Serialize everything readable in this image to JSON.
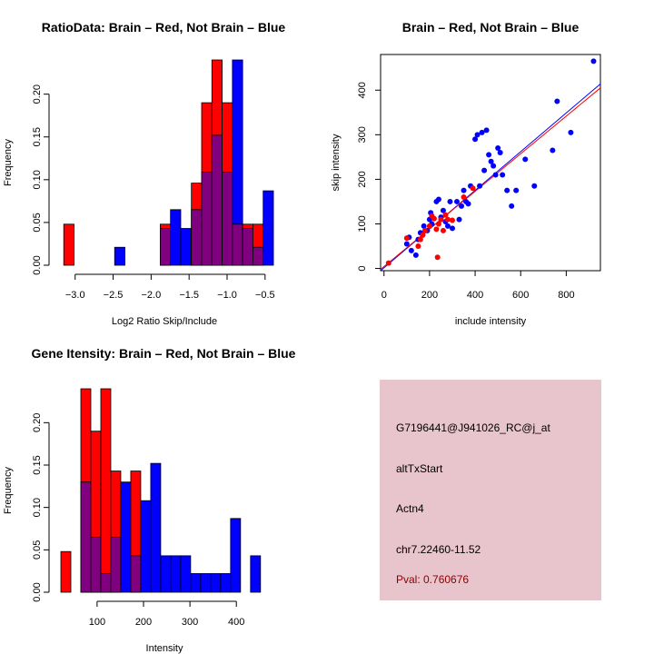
{
  "chart_data": [
    {
      "type": "bar",
      "title": "RatioData: Brain – Red, Not Brain – Blue",
      "xlabel": "Log2 Ratio Skip/Include",
      "ylabel": "Frequency",
      "xlim": [
        -3.2,
        -0.45
      ],
      "ylim": [
        0,
        0.24
      ],
      "xticks": [
        -3.0,
        -2.5,
        -2.0,
        -1.5,
        -1.0,
        -0.5
      ],
      "xtick_labels": [
        "−3.0",
        "−2.5",
        "−2.0",
        "−1.5",
        "−1.0",
        "−0.5"
      ],
      "yticks": [
        0.0,
        0.05,
        0.1,
        0.15,
        0.2
      ],
      "ytick_labels": [
        "0.00",
        "0.05",
        "0.10",
        "0.15",
        "0.20"
      ],
      "bin_width": 0.135,
      "series": [
        {
          "name": "Brain",
          "color": "#ff0000",
          "bins": [
            {
              "x0": -3.15,
              "value": 0.048
            },
            {
              "x0": -1.88,
              "value": 0.048
            },
            {
              "x0": -1.47,
              "value": 0.096
            },
            {
              "x0": -1.335,
              "value": 0.19
            },
            {
              "x0": -1.2,
              "value": 0.24
            },
            {
              "x0": -1.065,
              "value": 0.19
            },
            {
              "x0": -0.93,
              "value": 0.048
            },
            {
              "x0": -0.795,
              "value": 0.048
            },
            {
              "x0": -0.66,
              "value": 0.048
            }
          ]
        },
        {
          "name": "Not Brain",
          "color": "#0000ff",
          "bins": [
            {
              "x0": -2.48,
              "value": 0.021
            },
            {
              "x0": -1.88,
              "value": 0.043
            },
            {
              "x0": -1.745,
              "value": 0.065
            },
            {
              "x0": -1.61,
              "value": 0.043
            },
            {
              "x0": -1.47,
              "value": 0.065
            },
            {
              "x0": -1.335,
              "value": 0.109
            },
            {
              "x0": -1.2,
              "value": 0.152
            },
            {
              "x0": -1.065,
              "value": 0.109
            },
            {
              "x0": -0.93,
              "value": 0.24
            },
            {
              "x0": -0.795,
              "value": 0.043
            },
            {
              "x0": -0.66,
              "value": 0.021
            },
            {
              "x0": -0.525,
              "value": 0.087
            }
          ]
        }
      ]
    },
    {
      "type": "scatter",
      "title": "Brain – Red, Not Brain – Blue",
      "xlabel": "include intensity",
      "ylabel": "skip intensity",
      "xlim": [
        -15,
        950
      ],
      "ylim": [
        -5,
        480
      ],
      "xticks": [
        0,
        200,
        400,
        600,
        800
      ],
      "xtick_labels": [
        "0",
        "200",
        "400",
        "600",
        "800"
      ],
      "yticks": [
        0,
        100,
        200,
        300,
        400
      ],
      "ytick_labels": [
        "0",
        "100",
        "200",
        "300",
        "400"
      ],
      "fit_lines": [
        {
          "name": "Not Brain",
          "color": "#0000ff",
          "x": [
            -15,
            950
          ],
          "y": [
            -5,
            414
          ]
        },
        {
          "name": "Brain",
          "color": "#ff0000",
          "x": [
            -15,
            950
          ],
          "y": [
            -2,
            405
          ]
        }
      ],
      "series": [
        {
          "name": "Brain",
          "color": "#ff0000",
          "x": [
            20,
            100,
            150,
            160,
            170,
            180,
            200,
            210,
            220,
            230,
            240,
            250,
            260,
            270,
            280,
            300,
            350,
            390,
            235
          ],
          "y": [
            12,
            68,
            50,
            65,
            75,
            85,
            95,
            118,
            112,
            88,
            100,
            110,
            85,
            120,
            110,
            108,
            160,
            180,
            25
          ]
        },
        {
          "name": "Not Brain",
          "color": "#0000ff",
          "x": [
            100,
            110,
            120,
            140,
            150,
            160,
            170,
            175,
            190,
            200,
            205,
            210,
            230,
            240,
            250,
            260,
            270,
            280,
            290,
            300,
            320,
            330,
            340,
            350,
            360,
            370,
            380,
            400,
            410,
            420,
            430,
            440,
            450,
            460,
            470,
            480,
            490,
            500,
            510,
            520,
            540,
            560,
            580,
            620,
            660,
            740,
            760,
            820,
            920
          ],
          "y": [
            55,
            70,
            40,
            30,
            65,
            80,
            75,
            95,
            85,
            110,
            125,
            100,
            150,
            155,
            115,
            130,
            105,
            95,
            150,
            90,
            150,
            110,
            140,
            175,
            150,
            145,
            185,
            290,
            300,
            185,
            305,
            220,
            310,
            255,
            240,
            230,
            210,
            270,
            260,
            210,
            175,
            140,
            175,
            245,
            185,
            265,
            375,
            305,
            465
          ]
        }
      ]
    },
    {
      "type": "bar",
      "title": "Gene Itensity: Brain – Red, Not Brain – Blue",
      "xlabel": "Intensity",
      "ylabel": "Frequency",
      "xlim": [
        20,
        470
      ],
      "ylim": [
        0,
        0.24
      ],
      "xticks": [
        100,
        200,
        300,
        400
      ],
      "xtick_labels": [
        "100",
        "200",
        "300",
        "400"
      ],
      "yticks": [
        0.0,
        0.05,
        0.1,
        0.15,
        0.2
      ],
      "ytick_labels": [
        "0.00",
        "0.05",
        "0.10",
        "0.15",
        "0.20"
      ],
      "bin_width": 21.5,
      "series": [
        {
          "name": "Brain",
          "color": "#ff0000",
          "bins": [
            {
              "x0": 22,
              "value": 0.048
            },
            {
              "x0": 65,
              "value": 0.24
            },
            {
              "x0": 86.5,
              "value": 0.19
            },
            {
              "x0": 108,
              "value": 0.24
            },
            {
              "x0": 129.5,
              "value": 0.143
            },
            {
              "x0": 172.5,
              "value": 0.143
            }
          ]
        },
        {
          "name": "Not Brain",
          "color": "#0000ff",
          "bins": [
            {
              "x0": 65,
              "value": 0.13
            },
            {
              "x0": 86.5,
              "value": 0.065
            },
            {
              "x0": 108,
              "value": 0.022
            },
            {
              "x0": 129.5,
              "value": 0.065
            },
            {
              "x0": 151,
              "value": 0.13
            },
            {
              "x0": 172.5,
              "value": 0.043
            },
            {
              "x0": 194,
              "value": 0.108
            },
            {
              "x0": 215.5,
              "value": 0.152
            },
            {
              "x0": 237,
              "value": 0.043
            },
            {
              "x0": 258.5,
              "value": 0.043
            },
            {
              "x0": 280,
              "value": 0.043
            },
            {
              "x0": 301.5,
              "value": 0.022
            },
            {
              "x0": 323,
              "value": 0.022
            },
            {
              "x0": 344.5,
              "value": 0.022
            },
            {
              "x0": 366,
              "value": 0.022
            },
            {
              "x0": 387.5,
              "value": 0.087
            },
            {
              "x0": 430.5,
              "value": 0.043
            }
          ]
        }
      ]
    }
  ],
  "overlap_color": "#800080",
  "info": {
    "probe": "G7196441@J941026_RC@j_at",
    "event_type": "altTxStart",
    "gene": "Actn4",
    "location": "chr7.22460-11.52",
    "pval": "Pval: 0.760676"
  }
}
